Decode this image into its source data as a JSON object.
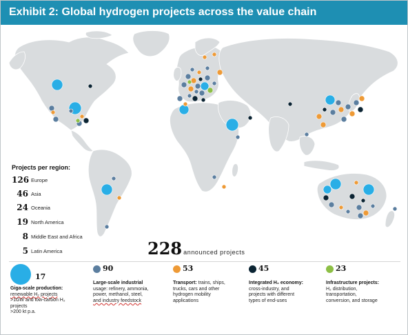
{
  "title": "Exhibit 2: Global hydrogen projects across the value chain",
  "projects_per_region": {
    "heading": "Projects per region:",
    "regions": [
      {
        "count": "126",
        "name": "Europe"
      },
      {
        "count": "46",
        "name": "Asia"
      },
      {
        "count": "24",
        "name": "Oceania"
      },
      {
        "count": "19",
        "name": "North America"
      },
      {
        "count": "8",
        "name": "Middle East and Africa"
      },
      {
        "count": "5",
        "name": "Latin America"
      }
    ]
  },
  "total": {
    "count": "228",
    "label": "announced projects"
  },
  "colors": {
    "title_bar": "#1e8fb3",
    "land": "#d9dcde",
    "giga": "#29aee6",
    "industrial": "#5b7e9f",
    "transport": "#ee9a36",
    "integrated": "#0b2433",
    "infrastructure": "#8dbf45"
  },
  "legend": [
    {
      "key": "giga",
      "count": "17",
      "title": "Giga-scale production:",
      "lines": [
        "renewable H₂ projects",
        ">1GW and low-carbon H₂",
        "projects",
        ">200 kt p.a."
      ]
    },
    {
      "key": "industrial",
      "count": "90",
      "title": "Large-scale industrial",
      "lines": [
        "usage: refinery, ammonia,",
        "power, methanol, steel,",
        "and industry feedstock"
      ]
    },
    {
      "key": "transport",
      "count": "53",
      "title": "Transport:",
      "lines": [
        "trains, ships,",
        "trucks, cars and other",
        "hydrogen mobility",
        "applications"
      ]
    },
    {
      "key": "integrated",
      "count": "45",
      "title": "Integrated H₂ economy:",
      "lines": [
        "cross-industry, and",
        "projects with different",
        "types of end-uses"
      ]
    },
    {
      "key": "infrastructure",
      "count": "23",
      "title": "Infrastructure projects:",
      "lines": [
        "H₂ distribution,",
        "transportation,",
        "conversion, and storage"
      ]
    }
  ]
}
